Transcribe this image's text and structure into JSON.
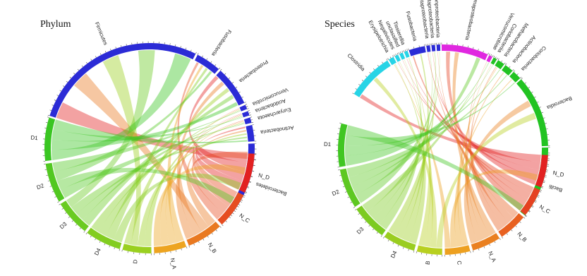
{
  "panels": [
    {
      "title": "Phylum",
      "taxa": [
        "Firmicutes",
        "Fusobacteria",
        "Proteobacteria",
        "Verrucomicrobia",
        "Acidobacteria",
        "Euryarchaeota",
        "Actinobacteria",
        "Bacteroidetes"
      ],
      "samples": [
        "N_D",
        "N_C",
        "N_B",
        "N_A",
        "D",
        "D4",
        "D3",
        "D2",
        "D1"
      ]
    },
    {
      "title": "Species",
      "taxa": [
        "Clostridia",
        "Erysipelotrichia",
        "Negativicutes",
        "unclassified",
        "Tissierellia",
        "Fusobacteria",
        "Betaproteobacteria",
        "Deltaproteobacteria",
        "Epsilonproteobacteria",
        "Gammaproteobacteria",
        "Verrucomicrobiae",
        "Coriobacteriia",
        "Methanobacteria",
        "Actinobacteria",
        "Coriobacteriia",
        "Bacteroidia",
        "Bacilli"
      ],
      "samples": [
        "N_D",
        "N_C",
        "N_B",
        "N_A",
        "C",
        "B",
        "D4",
        "D3",
        "D2",
        "D1"
      ]
    }
  ],
  "colors": {
    "blue": "#2b2bd6",
    "cyan": "#27d4e6",
    "magenta": "#e028e0",
    "red": "#e22121",
    "green": "#22c322"
  }
}
